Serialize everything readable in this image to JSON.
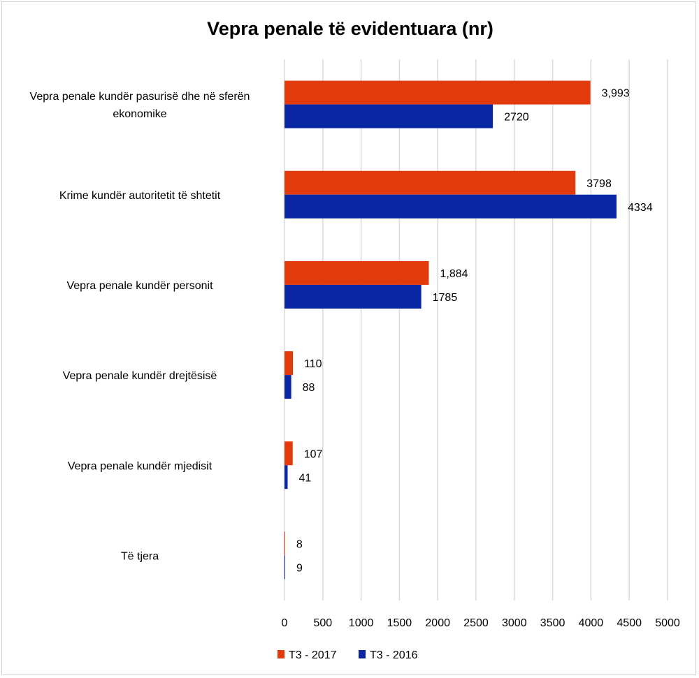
{
  "chart_data": {
    "type": "bar",
    "orientation": "horizontal",
    "title": "Vepra penale të evidentuara (nr)",
    "categories": [
      [
        "Vepra penale kundër pasurisë dhe në sferën",
        "ekonomike"
      ],
      [
        "Krime kundër autoritetit të shtetit"
      ],
      [
        "Vepra penale kundër personit"
      ],
      [
        "Vepra penale kundër drejtësisë"
      ],
      [
        "Vepra penale kundër mjedisit"
      ],
      [
        "Të tjera"
      ]
    ],
    "series": [
      {
        "name": "T3 - 2017",
        "color": "#e33a0b",
        "values": [
          3993,
          3798,
          1884,
          110,
          107,
          8
        ],
        "labels": [
          "3,993",
          "3798",
          "1,884",
          "110",
          "107",
          "8"
        ]
      },
      {
        "name": "T3 - 2016",
        "color": "#0a27a3",
        "values": [
          2720,
          4334,
          1785,
          88,
          41,
          9
        ],
        "labels": [
          "2720",
          "4334",
          "1785",
          "88",
          "41",
          "9"
        ]
      }
    ],
    "xlim": [
      0,
      5000
    ],
    "xticks": [
      0,
      500,
      1000,
      1500,
      2000,
      2500,
      3000,
      3500,
      4000,
      4500,
      5000
    ],
    "grid": "vertical",
    "legend_position": "bottom"
  }
}
